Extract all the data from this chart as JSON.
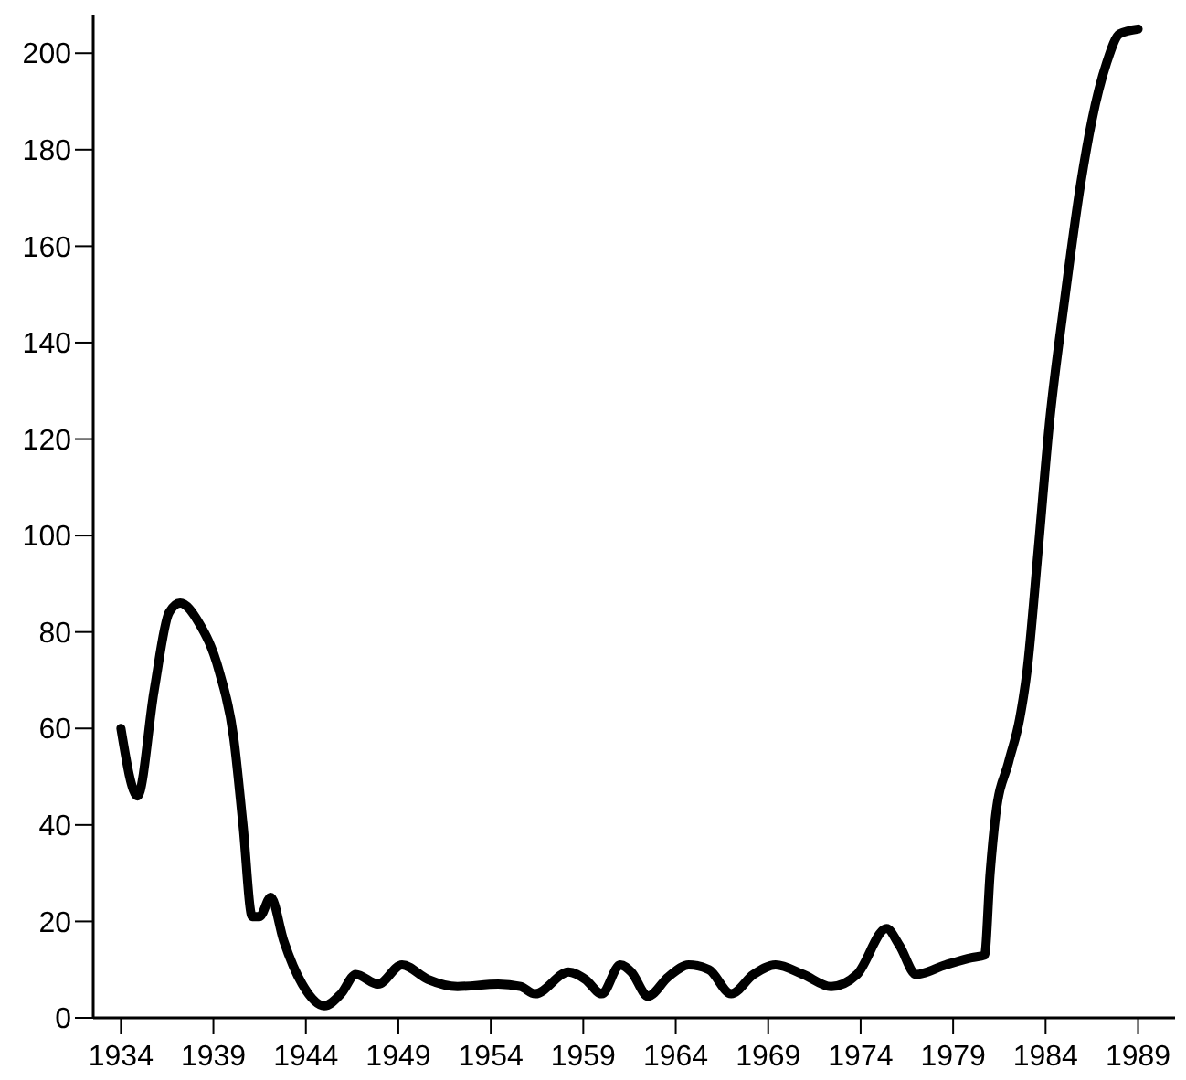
{
  "chart_data": {
    "type": "line",
    "xlim": [
      1932.5,
      1991
    ],
    "ylim": [
      0,
      208
    ],
    "xticks": [
      1934,
      1939,
      1944,
      1949,
      1954,
      1959,
      1964,
      1969,
      1974,
      1979,
      1984,
      1989
    ],
    "yticks": [
      0,
      20,
      40,
      60,
      80,
      100,
      120,
      140,
      160,
      180,
      200
    ],
    "marker": "none",
    "line_style": "solid",
    "series": [
      {
        "color": "#000000",
        "x": [
          1934,
          1934.9,
          1935.8,
          1936.6,
          1937.2,
          1938.2,
          1939.3,
          1940.1,
          1940.6,
          1941.1,
          1941.5,
          1942.1,
          1942.8,
          1943.8,
          1945,
          1945.9,
          1946.7,
          1947.9,
          1949.2,
          1950.6,
          1952.2,
          1954.4,
          1955.6,
          1956.4,
          1958.2,
          1959.1,
          1960,
          1961,
          1961.6,
          1962.5,
          1963.6,
          1964.7,
          1965.8,
          1967,
          1968.2,
          1969.4,
          1970.9,
          1972.4,
          1973.8,
          1975.4,
          1976.1,
          1977,
          1978.6,
          1980,
          1980.7,
          1981,
          1981.3,
          1982,
          1982.6,
          1983,
          1983.6,
          1984.2,
          1985,
          1985.9,
          1986.5,
          1987.3,
          1988,
          1989
        ],
        "values": [
          60,
          46,
          68,
          84,
          86,
          82,
          72,
          58,
          40,
          21,
          21,
          25,
          16,
          7,
          2.5,
          5,
          9,
          7,
          11,
          8,
          6.5,
          7,
          6.5,
          5,
          9.5,
          8,
          5,
          11,
          9.5,
          4.5,
          8.5,
          11,
          10,
          5,
          9,
          11,
          9,
          6.5,
          9,
          18.5,
          15,
          9,
          11,
          12.5,
          13,
          30,
          42,
          53,
          62,
          72,
          97,
          123,
          148,
          173,
          186,
          198,
          204,
          205
        ]
      }
    ]
  }
}
